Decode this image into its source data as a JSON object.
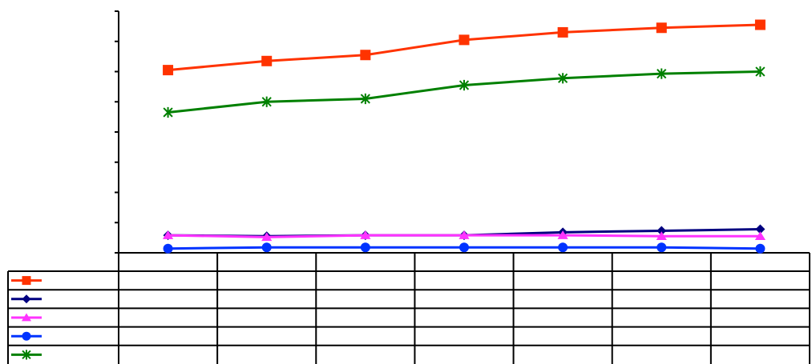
{
  "chart_data": {
    "type": "line",
    "title": "",
    "xlabel": "",
    "ylabel": "",
    "categories": [
      "",
      "",
      "",
      "",
      "",
      "",
      ""
    ],
    "ylim": [
      0,
      8
    ],
    "y_tick_count": 9,
    "grid": false,
    "legend": "data-table",
    "series": [
      {
        "marker": "square",
        "color": "#ff3300",
        "values": [
          6.05,
          6.35,
          6.55,
          7.05,
          7.3,
          7.45,
          7.55
        ]
      },
      {
        "marker": "diamond",
        "color": "#000080",
        "values": [
          0.58,
          0.55,
          0.58,
          0.58,
          0.68,
          0.73,
          0.78
        ]
      },
      {
        "marker": "triangle",
        "color": "#ff33ff",
        "values": [
          0.58,
          0.52,
          0.58,
          0.58,
          0.58,
          0.55,
          0.55
        ]
      },
      {
        "marker": "circle",
        "color": "#0033ff",
        "values": [
          0.14,
          0.18,
          0.18,
          0.18,
          0.18,
          0.18,
          0.14
        ]
      },
      {
        "marker": "star",
        "color": "#008000",
        "values": [
          4.65,
          5.0,
          5.1,
          5.55,
          5.78,
          5.93,
          6.0
        ]
      }
    ]
  }
}
